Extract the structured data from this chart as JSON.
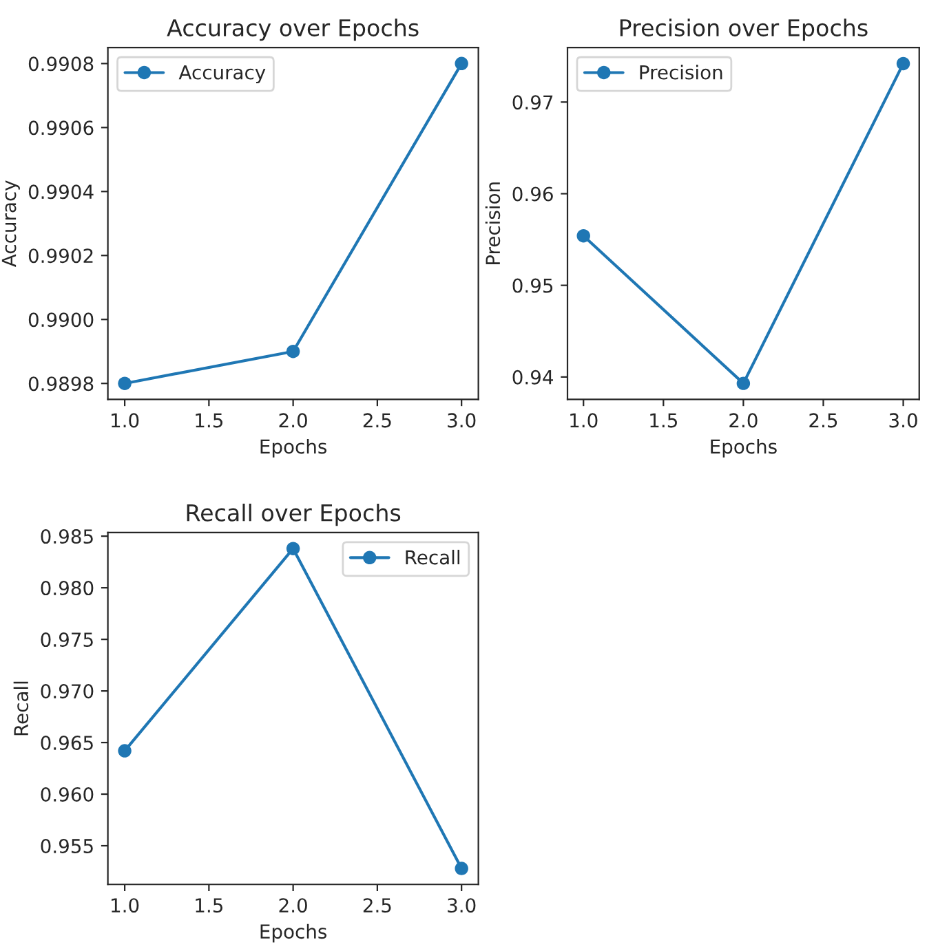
{
  "chart_data": [
    {
      "type": "line",
      "title": "Accuracy over Epochs",
      "xlabel": "Epochs",
      "ylabel": "Accuracy",
      "x": [
        1,
        2,
        3
      ],
      "series": [
        {
          "name": "Accuracy",
          "color": "#1f77b4",
          "values": [
            0.9898,
            0.9899,
            0.9908
          ]
        }
      ],
      "xlim": [
        0.9,
        3.1
      ],
      "xticks": [
        {
          "value": 1,
          "label": "1.0"
        },
        {
          "value": 1.5,
          "label": "1.5"
        },
        {
          "value": 2,
          "label": "2.0"
        },
        {
          "value": 2.5,
          "label": "2.5"
        },
        {
          "value": 3,
          "label": "3.0"
        }
      ],
      "ylim": [
        0.98975,
        0.99085
      ],
      "yticks": [
        0.9898,
        {
          "value": 0.99,
          "label": "0.9900"
        },
        0.9902,
        0.9904,
        0.9906,
        0.9908
      ],
      "marker": "circle",
      "line_style": "solid",
      "legend": "top left",
      "grid": false
    },
    {
      "type": "line",
      "title": "Precision over Epochs",
      "xlabel": "Epochs",
      "ylabel": "Precision",
      "x": [
        1,
        2,
        3
      ],
      "series": [
        {
          "name": "Precision",
          "color": "#1f77b4",
          "values": [
            0.9554,
            0.9393,
            0.9742
          ]
        }
      ],
      "xlim": [
        0.9,
        3.1
      ],
      "xticks": [
        {
          "value": 1,
          "label": "1.0"
        },
        {
          "value": 1.5,
          "label": "1.5"
        },
        {
          "value": 2,
          "label": "2.0"
        },
        {
          "value": 2.5,
          "label": "2.5"
        },
        {
          "value": 3,
          "label": "3.0"
        }
      ],
      "ylim": [
        0.93755,
        0.97595
      ],
      "yticks": [
        0.94,
        0.95,
        0.96,
        0.97
      ],
      "marker": "circle",
      "line_style": "solid",
      "legend": "top left",
      "grid": false
    },
    {
      "type": "line",
      "title": "Recall over Epochs",
      "xlabel": "Epochs",
      "ylabel": "Recall",
      "x": [
        1,
        2,
        3
      ],
      "series": [
        {
          "name": "Recall",
          "color": "#1f77b4",
          "values": [
            0.9642,
            0.9838,
            0.9528
          ]
        }
      ],
      "xlim": [
        0.9,
        3.1
      ],
      "xticks": [
        {
          "value": 1,
          "label": "1.0"
        },
        {
          "value": 1.5,
          "label": "1.5"
        },
        {
          "value": 2,
          "label": "2.0"
        },
        {
          "value": 2.5,
          "label": "2.5"
        },
        {
          "value": 3,
          "label": "3.0"
        }
      ],
      "ylim": [
        0.95125,
        0.98535
      ],
      "yticks": [
        0.955,
        {
          "value": 0.96,
          "label": "0.960"
        },
        0.965,
        {
          "value": 0.97,
          "label": "0.970"
        },
        0.975,
        {
          "value": 0.98,
          "label": "0.980"
        },
        0.985
      ],
      "marker": "circle",
      "line_style": "solid",
      "legend": "top right",
      "grid": false
    }
  ]
}
